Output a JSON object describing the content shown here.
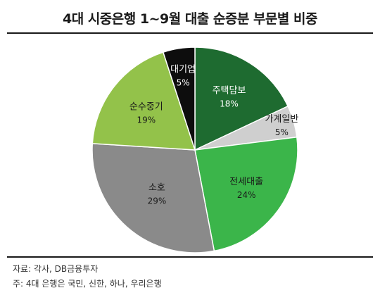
{
  "chart_data": {
    "type": "pie",
    "title": "4대 시중은행 1~9월 대출 순증분 부문별 비중",
    "slices": [
      {
        "label": "주택담보",
        "value": 18,
        "value_label": "18%",
        "color": "#1e6b30",
        "text_color": "#ffffff"
      },
      {
        "label": "가계일반",
        "value": 5,
        "value_label": "5%",
        "color": "#cfcfcf",
        "text_color": "#1a1a1a"
      },
      {
        "label": "전세대출",
        "value": 24,
        "value_label": "24%",
        "color": "#3bb54a",
        "text_color": "#1a1a1a"
      },
      {
        "label": "소호",
        "value": 29,
        "value_label": "29%",
        "color": "#8a8a8a",
        "text_color": "#1a1a1a"
      },
      {
        "label": "순수중기",
        "value": 19,
        "value_label": "19%",
        "color": "#93c24a",
        "text_color": "#1a1a1a"
      },
      {
        "label": "대기업",
        "value": 5,
        "value_label": "5%",
        "color": "#0d0d0d",
        "text_color": "#ffffff"
      }
    ],
    "start": "12 o'clock",
    "direction": "clockwise"
  },
  "source": {
    "line1": "자료: 각사, DB금융투자",
    "line2": "주: 4대 은행은 국민, 신한, 하나, 우리은행"
  }
}
